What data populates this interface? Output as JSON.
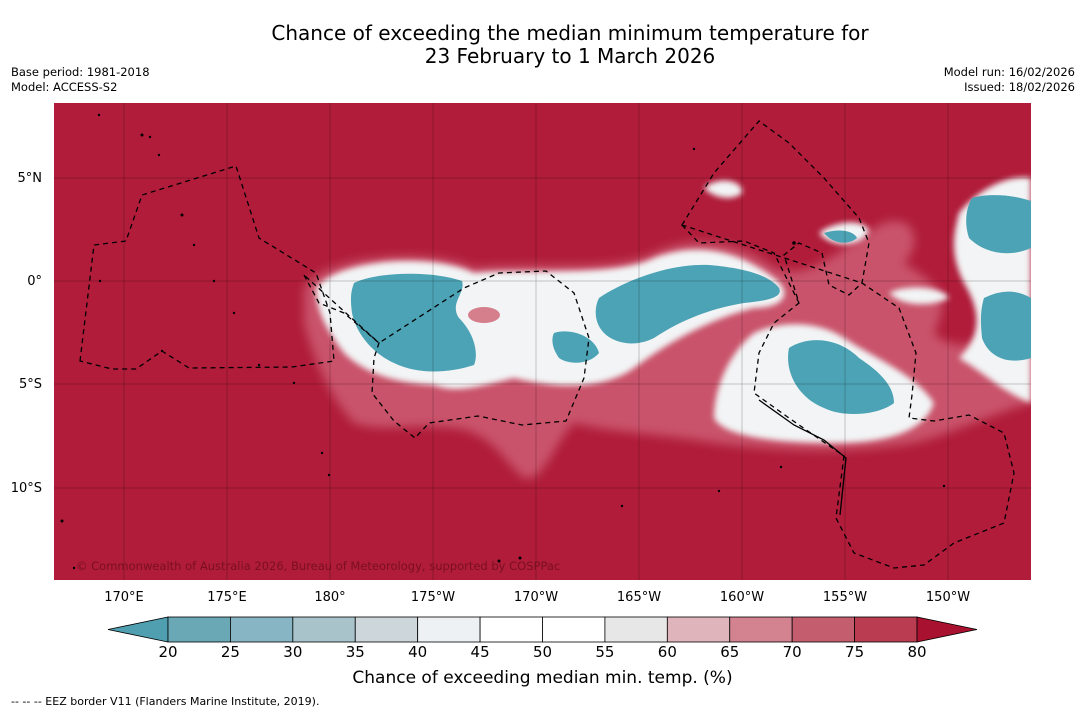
{
  "title": {
    "line1": "Chance of exceeding the median minimum temperature for",
    "line2": "23 February to 1 March 2026"
  },
  "meta": {
    "base_period": "Base period: 1981-2018",
    "model": "Model: ACCESS-S2",
    "model_run": "Model run: 16/02/2026",
    "issued": "Issued: 18/02/2026"
  },
  "map": {
    "copyright": "© Commonwealth of Australia 2026, Bureau of Meteorology, supported by COSPPac",
    "lat_labels": [
      "5°N",
      "0°",
      "5°S",
      "10°S"
    ],
    "lon_labels": [
      "170°E",
      "175°E",
      "180°",
      "175°W",
      "170°W",
      "165°W",
      "160°W",
      "155°W",
      "150°W"
    ],
    "background_color": "#b01c3a"
  },
  "colorbar": {
    "ticks": [
      "20",
      "25",
      "30",
      "35",
      "40",
      "45",
      "50",
      "55",
      "60",
      "65",
      "70",
      "75",
      "80"
    ],
    "colors": [
      "#6aa8b6",
      "#88b5c3",
      "#a8c3ca",
      "#cdd6da",
      "#edf1f3",
      "#ffffff",
      "#ffffff",
      "#e8e7e8",
      "#dfb4ba",
      "#d2838f",
      "#c45d6e",
      "#b93c51"
    ],
    "under_color": "#4f9fb1",
    "over_color": "#a8112f",
    "label": "Chance of exceeding median min. temp. (%)"
  },
  "eez_note": "--  --  -- EEZ border V11 (Flanders Marine Institute, 2019)."
}
